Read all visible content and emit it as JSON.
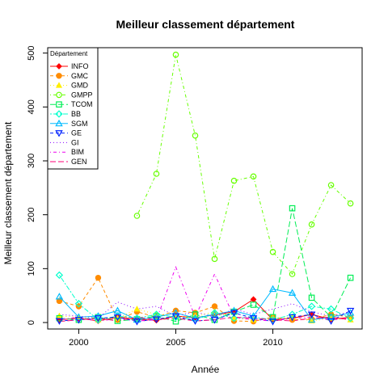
{
  "chart_data": {
    "type": "line",
    "title": "Meilleur classement département",
    "xlabel": "Année",
    "ylabel": "Meilleur classement département",
    "xlim": [
      1998.4,
      2014.6
    ],
    "ylim": [
      -12,
      510
    ],
    "xticks": [
      2000,
      2005,
      2010
    ],
    "yticks": [
      0,
      100,
      200,
      300,
      400,
      500
    ],
    "grid": false,
    "legend": {
      "title": "Département",
      "placement": "top-left"
    },
    "series": [
      {
        "name": "INFO",
        "color": "#ff0000",
        "line": "solid",
        "marker": "diamond-filled",
        "x": [
          1999,
          2000,
          2001,
          2002,
          2003,
          2004,
          2005,
          2006,
          2007,
          2008,
          2009,
          2010,
          2011,
          2012,
          2013,
          2014
        ],
        "y": [
          5,
          8,
          3,
          10,
          6,
          4,
          12,
          9,
          14,
          20,
          43,
          5,
          8,
          15,
          6,
          10
        ]
      },
      {
        "name": "GMC",
        "color": "#ff8c00",
        "line": "dashed",
        "marker": "circle-filled",
        "x": [
          1999,
          2000,
          2001,
          2002,
          2003,
          2004,
          2005,
          2006,
          2007,
          2008,
          2009,
          2010,
          2011,
          2012,
          2013,
          2014
        ],
        "y": [
          40,
          30,
          83,
          5,
          20,
          10,
          22,
          18,
          30,
          3,
          2,
          10,
          5,
          6,
          15,
          10
        ]
      },
      {
        "name": "GMD",
        "color": "#ffee00",
        "line": "dotted",
        "marker": "triangle-filled",
        "x": [
          1999,
          2000,
          2001,
          2002,
          2003,
          2004,
          2005,
          2006,
          2007,
          2008,
          2009,
          2010,
          2011,
          2012,
          2013,
          2014
        ],
        "y": [
          12,
          10,
          5,
          8,
          25,
          15,
          10,
          12,
          20,
          8,
          5,
          8,
          10,
          3,
          8,
          5
        ]
      },
      {
        "name": "GMPP",
        "color": "#66ff00",
        "line": "dotdash",
        "marker": "circle-open",
        "x": [
          2003,
          2004,
          2005,
          2006,
          2007,
          2008,
          2009,
          2010,
          2011,
          2012,
          2013,
          2014
        ],
        "y": [
          198,
          276,
          497,
          347,
          118,
          263,
          271,
          131,
          90,
          182,
          255,
          221
        ]
      },
      {
        "name": "TCOM",
        "color": "#00ee55",
        "line": "longdash",
        "marker": "square-open",
        "x": [
          1999,
          2000,
          2001,
          2002,
          2003,
          2004,
          2005,
          2006,
          2007,
          2008,
          2009,
          2010,
          2011,
          2012,
          2013,
          2014
        ],
        "y": [
          8,
          5,
          10,
          3,
          6,
          12,
          2,
          15,
          5,
          20,
          33,
          10,
          212,
          46,
          10,
          83
        ]
      },
      {
        "name": "BB",
        "color": "#00ffcc",
        "line": "twodash",
        "marker": "diamond-open",
        "x": [
          1999,
          2000,
          2001,
          2002,
          2003,
          2004,
          2005,
          2006,
          2007,
          2008,
          2009,
          2010,
          2011,
          2012,
          2013,
          2014
        ],
        "y": [
          88,
          35,
          5,
          12,
          8,
          15,
          10,
          5,
          18,
          8,
          10,
          5,
          15,
          30,
          25,
          8
        ]
      },
      {
        "name": "SGM",
        "color": "#00bbff",
        "line": "solid",
        "marker": "triangle-open",
        "x": [
          1999,
          2000,
          2001,
          2002,
          2003,
          2004,
          2005,
          2006,
          2007,
          2008,
          2009,
          2010,
          2011,
          2012,
          2013,
          2014
        ],
        "y": [
          48,
          10,
          12,
          22,
          5,
          10,
          18,
          8,
          15,
          22,
          12,
          62,
          55,
          5,
          10,
          18
        ]
      },
      {
        "name": "GE",
        "color": "#0022ff",
        "line": "dashed",
        "marker": "triangle-down-open",
        "x": [
          1999,
          2000,
          2001,
          2002,
          2003,
          2004,
          2005,
          2006,
          2007,
          2008,
          2009,
          2010,
          2011,
          2012,
          2013,
          2014
        ],
        "y": [
          3,
          5,
          8,
          10,
          2,
          6,
          12,
          3,
          5,
          18,
          8,
          2,
          10,
          15,
          3,
          22
        ]
      },
      {
        "name": "GI",
        "color": "#8800ff",
        "line": "dotted",
        "marker": "none",
        "x": [
          1999,
          2000,
          2001,
          2002,
          2003,
          2004,
          2005,
          2006,
          2007,
          2008,
          2009,
          2010,
          2011,
          2012,
          2013,
          2014
        ],
        "y": [
          15,
          12,
          8,
          38,
          25,
          30,
          12,
          20,
          10,
          25,
          15,
          25,
          35,
          20,
          12,
          20
        ]
      },
      {
        "name": "BIM",
        "color": "#ee00ee",
        "line": "dotdash",
        "marker": "none",
        "x": [
          1999,
          2000,
          2001,
          2002,
          2003,
          2004,
          2005,
          2006,
          2007,
          2008,
          2009,
          2010,
          2011,
          2012,
          2013,
          2014
        ],
        "y": [
          5,
          10,
          2,
          8,
          3,
          5,
          103,
          10,
          90,
          10,
          5,
          3,
          8,
          10,
          5,
          8
        ]
      },
      {
        "name": "GEN",
        "color": "#ff0077",
        "line": "longdash",
        "marker": "none",
        "x": [
          1999,
          2000,
          2001,
          2002,
          2003,
          2004,
          2005,
          2006,
          2007,
          2008,
          2009,
          2010,
          2011,
          2012,
          2013,
          2014
        ],
        "y": [
          2,
          5,
          8,
          3,
          10,
          5,
          8,
          3,
          5,
          10,
          8,
          5,
          3,
          8,
          10,
          5
        ]
      }
    ]
  }
}
